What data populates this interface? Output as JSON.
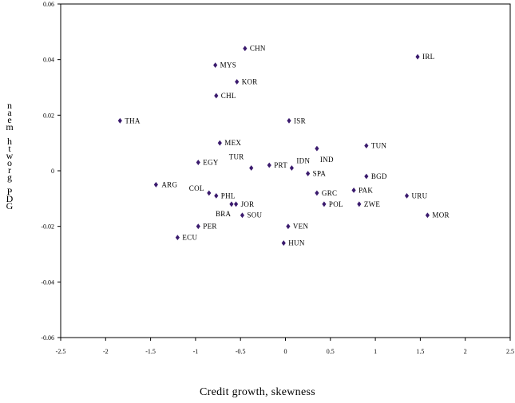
{
  "chart_data": {
    "type": "scatter",
    "xlabel": "Credit growth, skewness",
    "ylabel": "GDP growth mean",
    "xlim": [
      -2.5,
      2.5
    ],
    "ylim": [
      -0.06,
      0.06
    ],
    "xticks": [
      "-2.5",
      "-2",
      "-1.5",
      "-1",
      "-0.5",
      "0",
      "0.5",
      "1",
      "1.5",
      "2",
      "2.5"
    ],
    "yticks": [
      "0.06",
      "0.04",
      "0.02",
      "0",
      "-0.02",
      "-0.04",
      "-0.06"
    ],
    "marker_color": "#3b1b6e",
    "points": [
      {
        "label": "CHN",
        "x": -0.45,
        "y": 0.044
      },
      {
        "label": "IRL",
        "x": 1.47,
        "y": 0.041
      },
      {
        "label": "MYS",
        "x": -0.78,
        "y": 0.038
      },
      {
        "label": "KOR",
        "x": -0.54,
        "y": 0.032
      },
      {
        "label": "CHL",
        "x": -0.77,
        "y": 0.027
      },
      {
        "label": "THA",
        "x": -1.84,
        "y": 0.018
      },
      {
        "label": "ISR",
        "x": 0.04,
        "y": 0.018
      },
      {
        "label": "MEX",
        "x": -0.73,
        "y": 0.01
      },
      {
        "label": "TUN",
        "x": 0.9,
        "y": 0.009
      },
      {
        "label": "IND",
        "x": 0.35,
        "y": 0.008
      },
      {
        "label": "EGY",
        "x": -0.97,
        "y": 0.003
      },
      {
        "label": "TUR",
        "x": -0.38,
        "y": 0.001
      },
      {
        "label": "PRT",
        "x": -0.18,
        "y": 0.002
      },
      {
        "label": "IDN",
        "x": 0.07,
        "y": 0.001
      },
      {
        "label": "SPA",
        "x": 0.25,
        "y": -0.001
      },
      {
        "label": "BGD",
        "x": 0.9,
        "y": -0.002
      },
      {
        "label": "ARG",
        "x": -1.44,
        "y": -0.005
      },
      {
        "label": "PAK",
        "x": 0.76,
        "y": -0.007
      },
      {
        "label": "COL",
        "x": -0.85,
        "y": -0.008
      },
      {
        "label": "GRC",
        "x": 0.35,
        "y": -0.008
      },
      {
        "label": "PHL",
        "x": -0.77,
        "y": -0.009
      },
      {
        "label": "URU",
        "x": 1.35,
        "y": -0.009
      },
      {
        "label": "POL",
        "x": 0.43,
        "y": -0.012
      },
      {
        "label": "ZWE",
        "x": 0.82,
        "y": -0.012
      },
      {
        "label": "JOR",
        "x": -0.55,
        "y": -0.012
      },
      {
        "label": "BRA",
        "x": -0.6,
        "y": -0.012
      },
      {
        "label": "SOU",
        "x": -0.48,
        "y": -0.016
      },
      {
        "label": "MOR",
        "x": 1.58,
        "y": -0.016
      },
      {
        "label": "PER",
        "x": -0.97,
        "y": -0.02
      },
      {
        "label": "VEN",
        "x": 0.03,
        "y": -0.02
      },
      {
        "label": "ECU",
        "x": -1.2,
        "y": -0.024
      },
      {
        "label": "HUN",
        "x": -0.02,
        "y": -0.026
      }
    ]
  }
}
